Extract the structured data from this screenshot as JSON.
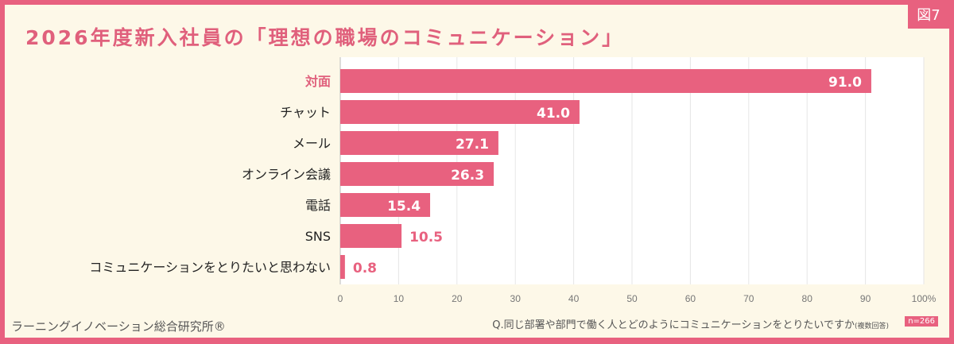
{
  "figure_label": "図7",
  "title": "2026年度新入社員の「理想の職場のコミュニケーション」",
  "source": "ラーニングイノベーション総合研究所®",
  "question": "Q.同じ部署や部門で働く人とどのようにコミュニケーションをとりたいですか",
  "question_note": "(複数回答)",
  "sample_size": "n=266",
  "colors": {
    "bar": "#e8617f",
    "frame": "#e8617f",
    "background": "#fdf8e8",
    "plot": "#ffffff",
    "highlight_label": "#e0607c"
  },
  "chart_data": {
    "type": "bar",
    "orientation": "horizontal",
    "categories": [
      "対面",
      "チャット",
      "メール",
      "オンライン会議",
      "電話",
      "SNS",
      "コミュニケーションをとりたいと思わない"
    ],
    "values": [
      91.0,
      41.0,
      27.1,
      26.3,
      15.4,
      10.5,
      0.8
    ],
    "value_labels": [
      "91.0",
      "41.0",
      "27.1",
      "26.3",
      "15.4",
      "10.5",
      "0.8"
    ],
    "xlim": [
      0,
      100
    ],
    "xticks": [
      "0",
      "10",
      "20",
      "30",
      "40",
      "50",
      "60",
      "70",
      "80",
      "90",
      "100%"
    ],
    "grid": "vertical",
    "highlighted_category": "対面"
  }
}
